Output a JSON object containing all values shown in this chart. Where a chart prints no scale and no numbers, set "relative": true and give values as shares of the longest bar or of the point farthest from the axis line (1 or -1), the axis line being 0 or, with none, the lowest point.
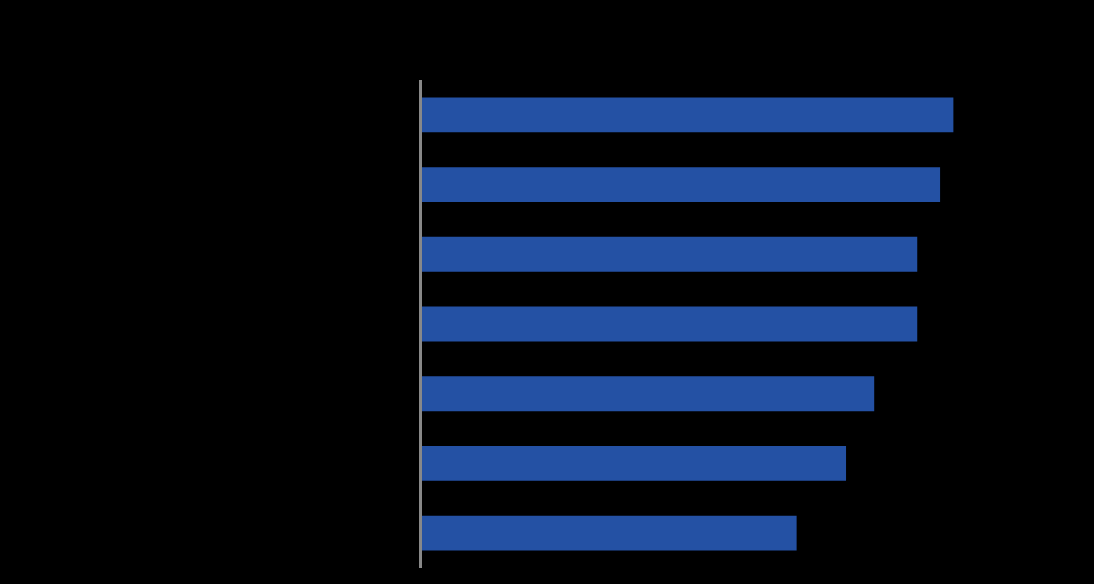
{
  "chart_data": {
    "type": "bar",
    "orientation": "horizontal",
    "relative": true,
    "categories": [
      null,
      null,
      null,
      null,
      null,
      null,
      null
    ],
    "values": [
      1,
      0.975,
      0.932,
      0.932,
      0.851,
      0.798,
      0.705
    ],
    "color": "#2451a4"
  }
}
